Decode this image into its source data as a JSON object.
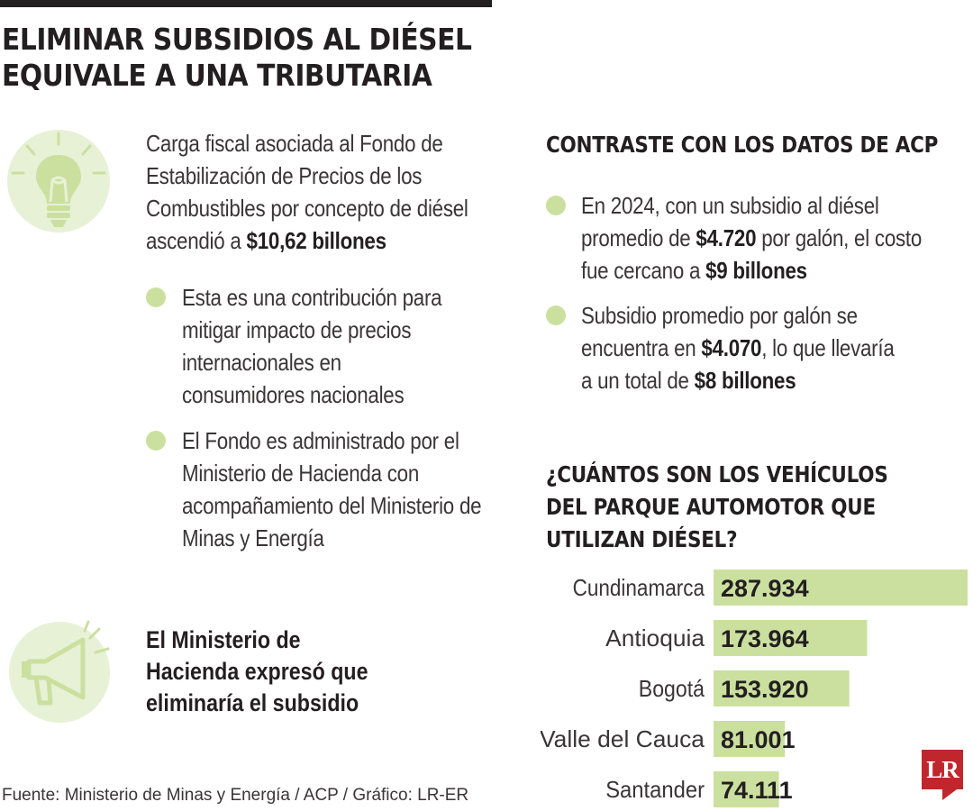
{
  "header": {
    "title_line1": "ELIMINAR SUBSIDIOS AL DIÉSEL",
    "title_line2": "EQUIVALE A UNA TRIBUTARIA"
  },
  "left": {
    "intro_text": "Carga fiscal asociada al Fondo de Estabilización de Precios de los Combustibles por concepto de diésel ascendió a ",
    "intro_bold": "$10,62 billones",
    "bullets": [
      "Esta es una contribución para mitigar impacto de precios internacionales en consumidores nacionales",
      "El Fondo es administrado por el Ministerio de Hacienda con acompañamiento del Ministerio de Minas y Energía"
    ],
    "headline": "El Ministerio de Hacienda expresó que eliminaría el subsidio"
  },
  "acp": {
    "heading": "CONTRASTE CON LOS DATOS DE ACP",
    "bullet1_a": "En 2024, con un subsidio al diésel promedio de ",
    "bullet1_b": "$4.720",
    "bullet1_c": " por galón, el costo fue cercano a ",
    "bullet1_d": "$9 billones",
    "bullet2_a": "Subsidio promedio por galón se encuentra en ",
    "bullet2_b": "$4.070",
    "bullet2_c": ", lo que llevaría a un total de ",
    "bullet2_d": "$8 billones"
  },
  "vehicles": {
    "heading_line1": "¿CUÁNTOS SON LOS VEHÍCULOS",
    "heading_line2": "DEL PARQUE AUTOMOTOR QUE",
    "heading_line3": "UTILIZAN DIÉSEL?"
  },
  "chart_data": {
    "type": "bar",
    "orientation": "horizontal",
    "categories": [
      "Cundinamarca",
      "Antioquia",
      "Bogotá",
      "Valle del Cauca",
      "Santander"
    ],
    "values": [
      287934,
      173964,
      153920,
      81001,
      74111
    ],
    "value_labels": [
      "287.934",
      "173.964",
      "153.920",
      "81.001",
      "74.111"
    ],
    "title": "¿CUÁNTOS SON LOS VEHÍCULOS DEL PARQUE AUTOMOTOR QUE UTILIZAN DIÉSEL?",
    "bar_color": "#cbe09f",
    "grid": false,
    "legend": "none"
  },
  "footer": {
    "source": "Fuente: Ministerio de Minas y Energía / ACP / Gráfico: LR-ER",
    "logo": "LR"
  },
  "colors": {
    "accent_green": "#cbe09f",
    "icon_bg": "#e7f1d6",
    "text": "#231f20",
    "brand_red": "#c0272d"
  },
  "icons": [
    "lightbulb-icon",
    "megaphone-icon",
    "lr-logo"
  ]
}
